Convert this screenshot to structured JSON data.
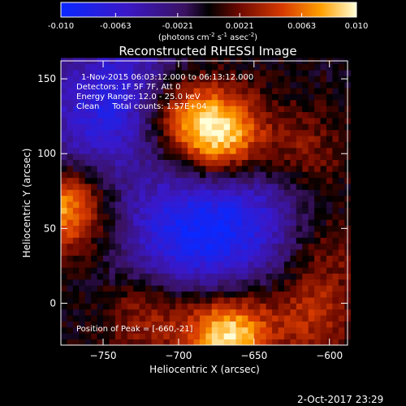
{
  "chart_data": {
    "type": "heatmap",
    "title": "Reconstructed RHESSI Image",
    "xlabel": "Heliocentric X (arcsec)",
    "ylabel": "Heliocentric Y (arcsec)",
    "xlim": [
      -778,
      -588
    ],
    "ylim": [
      -28,
      162
    ],
    "x_ticks": [
      -750,
      -700,
      -650,
      -600
    ],
    "y_ticks": [
      0,
      50,
      100,
      150
    ],
    "colorbar": {
      "min": -0.01,
      "max": 0.01,
      "tick_labels": [
        "-0.010",
        "-0.0063",
        "-0.0021",
        "0.0021",
        "0.0063",
        "0.010"
      ],
      "tick_values": [
        -0.01,
        -0.0063,
        -0.0021,
        0.0021,
        0.0063,
        0.01
      ],
      "unit_parts": [
        "(photons cm",
        "-2",
        " s",
        "-1",
        " asec",
        "-2",
        ")"
      ]
    },
    "info": [
      "1-Nov-2015 06:03:12.000 to 06:13:12.000",
      "Detectors: 1F 5F 7F, Att 0",
      "Energy Range: 12.0 - 25.0 keV",
      "Clean     Total counts: 1.57E+04"
    ],
    "peak_label": "Position of Peak = [-660,-21]",
    "peak": [
      -660,
      -21
    ],
    "sources": [
      {
        "x": -672,
        "y": 112,
        "amp": 0.0095
      },
      {
        "x": -700,
        "y": 128,
        "amp": 0.006
      },
      {
        "x": -668,
        "y": -22,
        "amp": 0.01
      },
      {
        "x": -720,
        "y": -5,
        "amp": 0.004
      },
      {
        "x": -612,
        "y": -8,
        "amp": 0.004
      },
      {
        "x": -775,
        "y": 65,
        "amp": 0.0085
      },
      {
        "x": -618,
        "y": 100,
        "amp": 0.003
      },
      {
        "x": -605,
        "y": 35,
        "amp": 0.0025
      }
    ],
    "negative_regions": [
      {
        "x": -700,
        "y": 45,
        "amp": -0.007
      },
      {
        "x": -655,
        "y": 55,
        "amp": -0.006
      },
      {
        "x": -735,
        "y": 145,
        "amp": -0.006
      },
      {
        "x": -760,
        "y": 110,
        "amp": -0.004
      }
    ]
  },
  "footer": {
    "timestamp": "2-Oct-2017 23:29"
  }
}
